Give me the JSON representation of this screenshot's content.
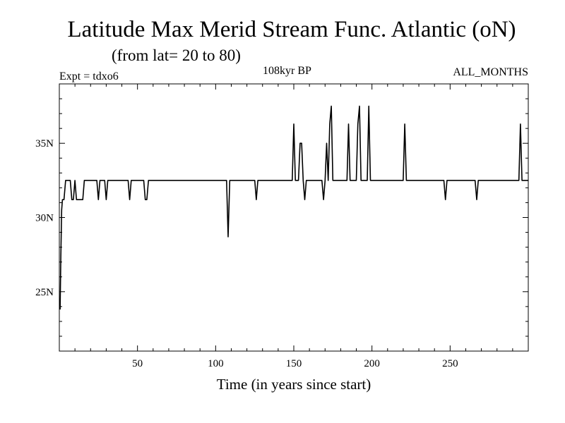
{
  "chart_data": {
    "type": "line",
    "title": "Latitude Max Merid Stream Func. Atlantic (oN)",
    "subtitle": "(from lat= 20 to 80)",
    "annotations": {
      "left": "Expt = tdxo6",
      "center": "108kyr BP",
      "right": "ALL_MONTHS"
    },
    "xlabel": "Time (in years since start)",
    "ylabel": "",
    "xlim": [
      0,
      300
    ],
    "ylim": [
      21,
      39
    ],
    "x_ticks": [
      50,
      100,
      150,
      200,
      250
    ],
    "x_tick_labels": [
      "50",
      "100",
      "150",
      "200",
      "250"
    ],
    "y_ticks": [
      25,
      30,
      35
    ],
    "y_tick_labels": [
      "25N",
      "30N",
      "35N"
    ],
    "grid": false,
    "legend": "none",
    "line_color": "#000000",
    "series": [
      {
        "x": [
          0.5,
          1,
          1.5,
          2,
          3,
          4,
          5,
          6,
          7,
          8,
          9,
          10,
          11,
          12,
          13,
          15,
          16,
          17,
          24,
          25,
          26,
          29,
          30,
          31,
          44,
          45,
          46,
          54,
          55,
          56,
          57,
          100,
          107,
          108,
          109,
          110,
          125,
          126,
          127,
          148,
          149,
          150,
          151,
          153,
          154,
          155,
          156,
          157,
          158,
          159,
          160,
          168,
          169,
          170,
          171,
          172,
          173,
          174,
          175,
          176,
          177,
          184,
          185,
          186,
          187,
          190,
          191,
          192,
          193,
          194,
          197,
          198,
          199,
          200,
          220,
          221,
          222,
          246,
          247,
          248,
          266,
          267,
          268,
          293,
          294,
          295,
          296,
          300
        ],
        "y": [
          23.8,
          27.5,
          30.5,
          31.2,
          31.2,
          32.5,
          32.5,
          32.5,
          32.5,
          31.2,
          31.2,
          32.5,
          31.2,
          31.2,
          31.2,
          31.2,
          32.5,
          32.5,
          32.5,
          31.2,
          32.5,
          32.5,
          31.2,
          32.5,
          32.5,
          31.2,
          32.5,
          32.5,
          31.2,
          31.2,
          32.5,
          32.5,
          32.5,
          28.7,
          32.5,
          32.5,
          32.5,
          31.2,
          32.5,
          32.5,
          32.5,
          36.3,
          32.5,
          32.5,
          35.0,
          35.0,
          32.5,
          31.2,
          32.5,
          32.5,
          32.5,
          32.5,
          31.2,
          32.5,
          35.0,
          32.5,
          36.3,
          37.5,
          32.5,
          32.5,
          32.5,
          32.5,
          36.3,
          32.5,
          32.5,
          32.5,
          36.3,
          37.5,
          32.5,
          32.5,
          32.5,
          37.5,
          32.5,
          32.5,
          32.5,
          36.3,
          32.5,
          32.5,
          31.2,
          32.5,
          32.5,
          31.2,
          32.5,
          32.5,
          32.5,
          36.3,
          32.5,
          32.5
        ]
      }
    ]
  }
}
